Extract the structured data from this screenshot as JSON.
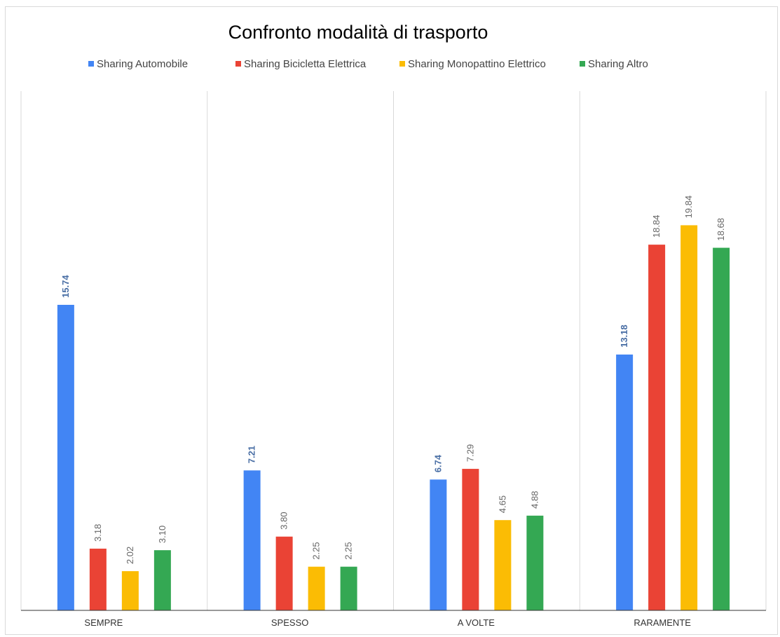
{
  "chart_data": {
    "type": "bar",
    "title": "Confronto modalità di trasporto",
    "categories": [
      "SEMPRE",
      "SPESSO",
      "A VOLTE",
      "RARAMENTE"
    ],
    "series": [
      {
        "name": "Sharing Automobile",
        "color": "#4285f4",
        "values": [
          15.74,
          7.21,
          6.74,
          13.18
        ],
        "labels": [
          "15.74",
          "7.21",
          "6.74",
          "13.18"
        ],
        "label_bold": true
      },
      {
        "name": "Sharing Bicicletta Elettrica",
        "color": "#ea4335",
        "values": [
          3.18,
          3.8,
          7.29,
          18.84
        ],
        "labels": [
          "3.18",
          "3.80",
          "7.29",
          "18.84"
        ],
        "label_bold": false
      },
      {
        "name": "Sharing Monopattino Elettrico",
        "color": "#fbbc04",
        "values": [
          2.02,
          2.25,
          4.65,
          19.84
        ],
        "labels": [
          "2.02",
          "2.25",
          "4.65",
          "19.84"
        ],
        "label_bold": false
      },
      {
        "name": "Sharing Altro",
        "color": "#34a853",
        "values": [
          3.1,
          2.25,
          4.88,
          18.68
        ],
        "labels": [
          "3.10",
          "2.25",
          "4.88",
          "18.68"
        ],
        "label_bold": false
      }
    ],
    "xlabel": "",
    "ylabel": "",
    "ylim": [
      0,
      22
    ],
    "legend_position": "top",
    "vertical_category_gridlines": true,
    "horizontal_gridlines": false
  }
}
